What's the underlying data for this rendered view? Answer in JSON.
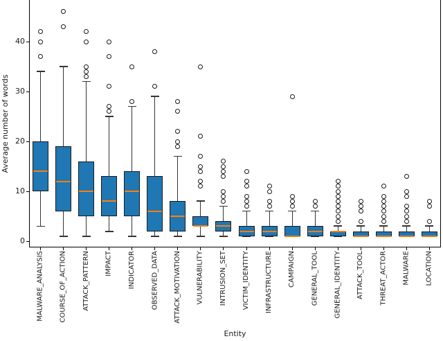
{
  "chart_data": {
    "type": "boxplot",
    "title": "",
    "xlabel": "Entity",
    "ylabel": "Average number of words",
    "yticks": [
      0,
      10,
      20,
      30,
      40
    ],
    "ylim": [
      -1.25,
      48.3
    ],
    "grid": false,
    "legend": null,
    "colors": {
      "box_fill": "#1f77b4",
      "median": "#ff7f0e",
      "whisker": "#333333",
      "edge": "#1a1a1a",
      "axis": "#000000"
    },
    "categories": [
      "MALWARE_ANALYSIS",
      "COURSE_OF_ACTION",
      "ATTACK_PATTERN",
      "IMPACT",
      "INDICATOR",
      "OBSERVED_DATA",
      "ATTACK_MOTIVATION",
      "VULNERABILITY",
      "INTRUSION_SET",
      "VICTIM_IDENTITY",
      "INFRASTRUCTURE",
      "CAMPAIGN",
      "GENERAL_TOOL",
      "GENERAL_IDENTITY",
      "ATTACK_TOOL",
      "THREAT_ACTOR",
      "MALWARE",
      "LOCATION"
    ],
    "boxes": [
      {
        "label": "MALWARE_ANALYSIS",
        "whislo": 3,
        "q1": 10,
        "med": 14,
        "q3": 20,
        "whishi": 34,
        "outliers": [
          37,
          40,
          42
        ]
      },
      {
        "label": "COURSE_OF_ACTION",
        "whislo": 1,
        "q1": 6,
        "med": 12,
        "q3": 19,
        "whishi": 35,
        "outliers": [
          43,
          46
        ]
      },
      {
        "label": "ATTACK_PATTERN",
        "whislo": 1,
        "q1": 5,
        "med": 10,
        "q3": 16,
        "whishi": 32,
        "outliers": [
          33,
          34,
          35,
          40,
          42
        ]
      },
      {
        "label": "IMPACT",
        "whislo": 2,
        "q1": 5,
        "med": 8,
        "q3": 13,
        "whishi": 25,
        "outliers": [
          26,
          27,
          31,
          37,
          40
        ]
      },
      {
        "label": "INDICATOR",
        "whislo": 1,
        "q1": 5,
        "med": 10,
        "q3": 14,
        "whishi": 27,
        "outliers": [
          28,
          35
        ]
      },
      {
        "label": "OBSERVED_DATA",
        "whislo": 1,
        "q1": 2,
        "med": 6,
        "q3": 13,
        "whishi": 29,
        "outliers": [
          31,
          38
        ]
      },
      {
        "label": "ATTACK_MOTIVATION",
        "whislo": 1,
        "q1": 2,
        "med": 5,
        "q3": 8,
        "whishi": 17,
        "outliers": [
          19,
          20,
          22,
          26,
          28
        ]
      },
      {
        "label": "VULNERABILITY",
        "whislo": 1,
        "q1": 3,
        "med": 3,
        "q3": 5,
        "whishi": 8,
        "outliers": [
          11,
          12,
          14,
          15,
          17,
          21,
          35
        ]
      },
      {
        "label": "INTRUSION_SET",
        "whislo": 1,
        "q1": 2,
        "med": 3,
        "q3": 4,
        "whishi": 7,
        "outliers": [
          8,
          9,
          10,
          13,
          14,
          15,
          16
        ]
      },
      {
        "label": "VICTIM_IDENTITY",
        "whislo": 1,
        "q1": 1,
        "med": 2,
        "q3": 3,
        "whishi": 6,
        "outliers": [
          7,
          8,
          9,
          11,
          12,
          14
        ]
      },
      {
        "label": "INFRASTRUCTURE",
        "whislo": 1,
        "q1": 1,
        "med": 2,
        "q3": 3,
        "whishi": 6,
        "outliers": [
          7,
          8,
          10,
          11
        ]
      },
      {
        "label": "CAMPAIGN",
        "whislo": 1,
        "q1": 1,
        "med": 1,
        "q3": 3,
        "whishi": 6,
        "outliers": [
          7,
          8,
          9,
          29
        ]
      },
      {
        "label": "GENERAL_TOOL",
        "whislo": 1,
        "q1": 1,
        "med": 2,
        "q3": 3,
        "whishi": 6,
        "outliers": [
          7,
          8
        ]
      },
      {
        "label": "GENERAL_IDENTITY",
        "whislo": 1,
        "q1": 1,
        "med": 2,
        "q3": 2,
        "whishi": 3,
        "outliers": [
          4,
          5,
          6,
          7,
          8,
          9,
          10,
          11,
          12
        ]
      },
      {
        "label": "ATTACK_TOOL",
        "whislo": 1,
        "q1": 1,
        "med": 1,
        "q3": 2,
        "whishi": 3,
        "outliers": [
          4,
          6,
          7,
          8
        ]
      },
      {
        "label": "THREAT_ACTOR",
        "whislo": 1,
        "q1": 1,
        "med": 1,
        "q3": 2,
        "whishi": 3,
        "outliers": [
          4,
          5,
          6,
          7,
          8,
          9,
          11
        ]
      },
      {
        "label": "MALWARE",
        "whislo": 1,
        "q1": 1,
        "med": 1,
        "q3": 2,
        "whishi": 3,
        "outliers": [
          4,
          5,
          6,
          7,
          9,
          10,
          13
        ]
      },
      {
        "label": "LOCATION",
        "whislo": 1,
        "q1": 1,
        "med": 1,
        "q3": 2,
        "whishi": 3,
        "outliers": [
          4,
          7,
          8
        ]
      }
    ]
  }
}
